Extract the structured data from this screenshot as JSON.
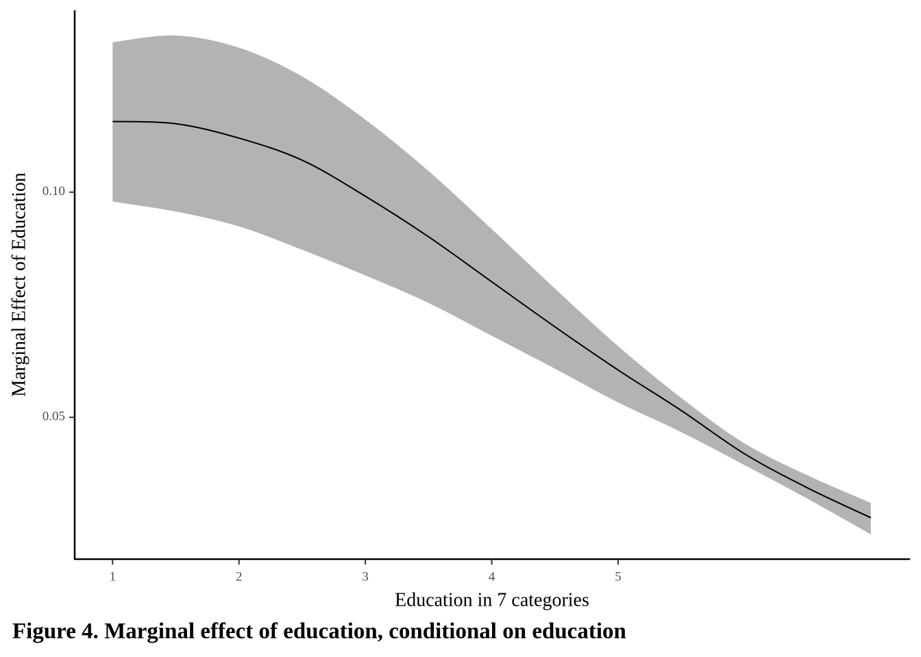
{
  "chart_data": {
    "type": "line",
    "title": "Figure 4. Marginal effect of education, conditional on education",
    "xlabel": "Education in 7 categories",
    "ylabel": "Marginal Effect of Education",
    "x": [
      1,
      1.5,
      2,
      2.5,
      3,
      3.5,
      4,
      4.5,
      5,
      5.5,
      6,
      6.5,
      7
    ],
    "series": [
      {
        "color": "#000000",
        "values": [
          0.1157,
          0.1152,
          0.112,
          0.1071,
          0.0991,
          0.0901,
          0.0801,
          0.0701,
          0.0605,
          0.0515,
          0.0419,
          0.0343,
          0.0277
        ]
      }
    ],
    "band": {
      "color": "#b3b3b3",
      "upper": [
        0.1333,
        0.1348,
        0.1321,
        0.1257,
        0.1161,
        0.1047,
        0.0918,
        0.0786,
        0.0658,
        0.0543,
        0.0442,
        0.0371,
        0.031
      ],
      "lower": [
        0.0979,
        0.0957,
        0.0924,
        0.0872,
        0.0815,
        0.0754,
        0.0681,
        0.0608,
        0.0533,
        0.0467,
        0.0394,
        0.0319,
        0.024
      ]
    },
    "xlim": [
      0.7,
      7.31
    ],
    "ylim": [
      0.0185,
      0.1404
    ],
    "xticks": [
      1,
      2,
      3,
      4,
      5
    ],
    "yticks": [
      0.05,
      {
        "value": 0.1,
        "label": "0.10"
      }
    ],
    "grid": false
  }
}
